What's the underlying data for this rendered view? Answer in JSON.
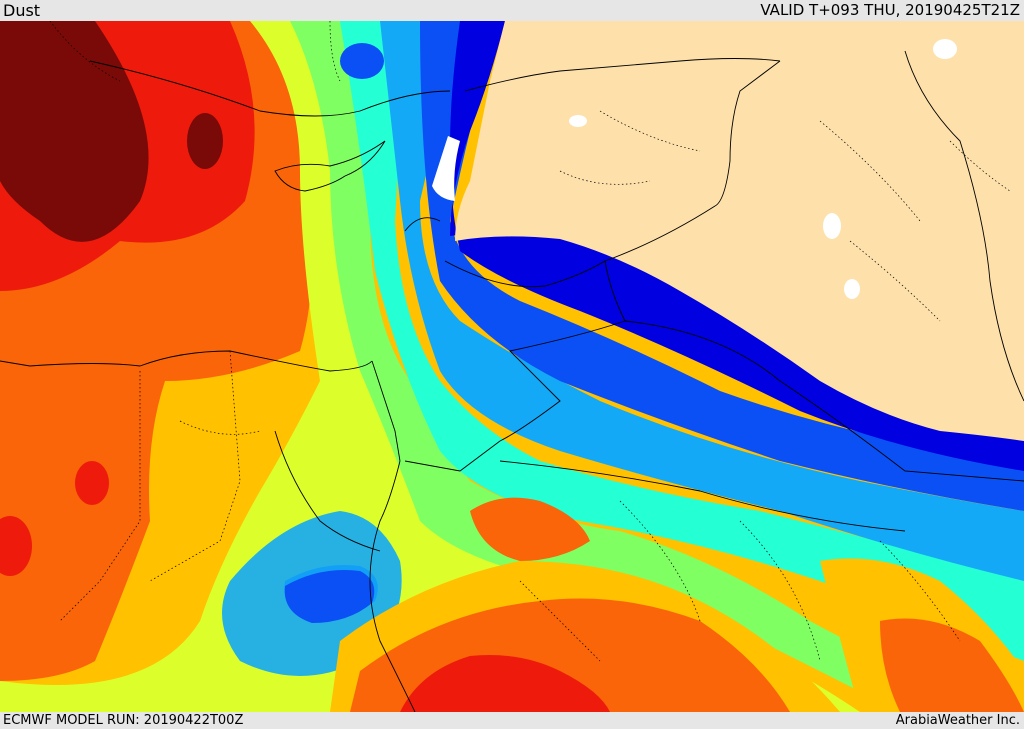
{
  "header": {
    "field_name": "Dust",
    "valid_time": "VALID T+093 THU, 20190425T21Z"
  },
  "footer": {
    "model_run": "ECMWF MODEL RUN: 20190422T00Z",
    "credit": "ArabiaWeather Inc."
  },
  "map": {
    "palette": {
      "very_high": "#7a0a08",
      "high": "#ee1b0c",
      "elevated": "#f96508",
      "moderate_high": "#ffc100",
      "moderate": "#dcff2b",
      "low_moderate": "#80ff63",
      "low": "#25ffd4",
      "very_low": "#13a9f7",
      "minimal": "#0a50f5",
      "trace": "#0000e0",
      "land_no_data": "#fde0aa",
      "water_no_data": "#ffffff"
    }
  }
}
